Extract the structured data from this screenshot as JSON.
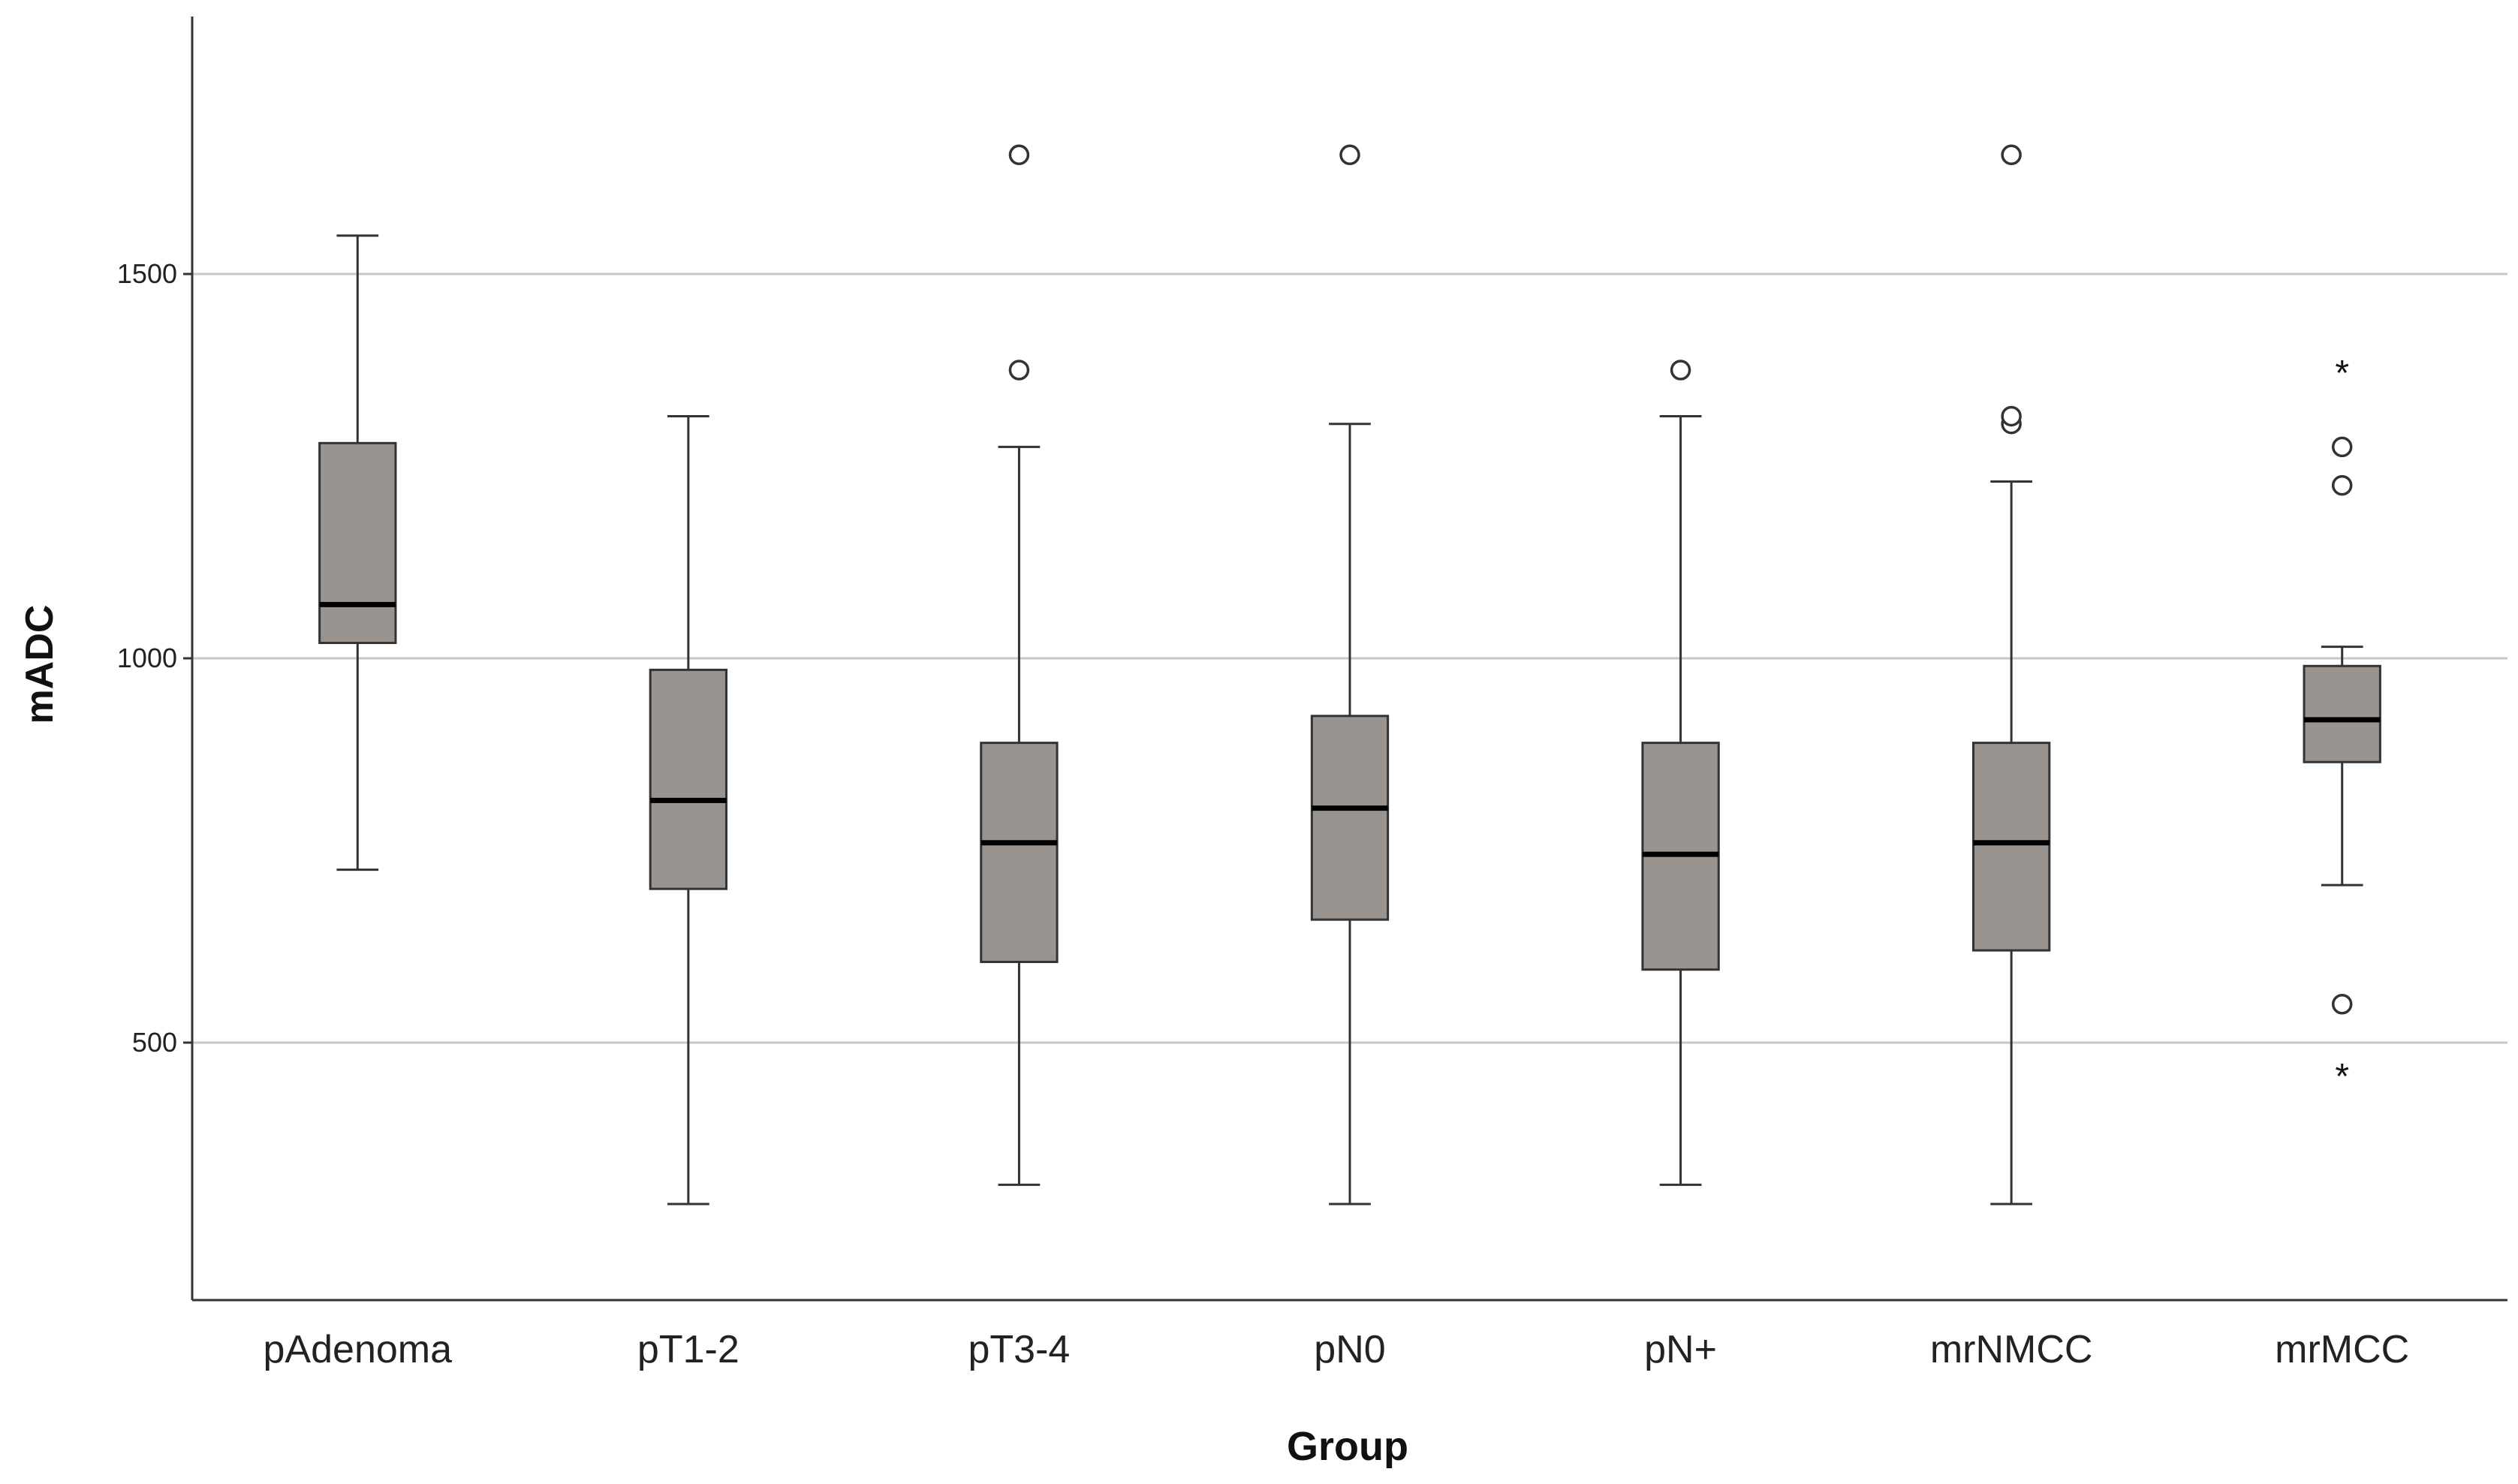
{
  "chart_data": {
    "type": "boxplot",
    "xlabel": "Group",
    "ylabel": "mADC",
    "ylim": [
      165,
      1835
    ],
    "yticks": [
      500,
      1000,
      1500
    ],
    "grid": true,
    "categories": [
      "pAdenoma",
      "pT1-2",
      "pT3-4",
      "pN0",
      "pN+",
      "mrNMCC",
      "mrMCC"
    ],
    "boxes": [
      {
        "group": "pAdenoma",
        "whisker_low": 725,
        "q1": 1020,
        "median": 1070,
        "q3": 1280,
        "whisker_high": 1550,
        "outliers": [],
        "extremes": []
      },
      {
        "group": "pT1-2",
        "whisker_low": 290,
        "q1": 700,
        "median": 815,
        "q3": 985,
        "whisker_high": 1315,
        "outliers": [],
        "extremes": []
      },
      {
        "group": "pT3-4",
        "whisker_low": 315,
        "q1": 605,
        "median": 760,
        "q3": 890,
        "whisker_high": 1275,
        "outliers": [
          1375,
          1655
        ],
        "extremes": []
      },
      {
        "group": "pN0",
        "whisker_low": 290,
        "q1": 660,
        "median": 805,
        "q3": 925,
        "whisker_high": 1305,
        "outliers": [
          1655
        ],
        "extremes": []
      },
      {
        "group": "pN+",
        "whisker_low": 315,
        "q1": 595,
        "median": 745,
        "q3": 890,
        "whisker_high": 1315,
        "outliers": [
          1375
        ],
        "extremes": []
      },
      {
        "group": "mrNMCC",
        "whisker_low": 290,
        "q1": 620,
        "median": 760,
        "q3": 890,
        "whisker_high": 1230,
        "outliers": [
          1305,
          1315,
          1655
        ],
        "extremes": []
      },
      {
        "group": "mrMCC",
        "whisker_low": 705,
        "q1": 865,
        "median": 920,
        "q3": 990,
        "whisker_high": 1015,
        "outliers": [
          550,
          1225,
          1275
        ],
        "extremes": [
          460,
          1375
        ]
      }
    ],
    "colors": {
      "box_fill": "#9a9490",
      "line": "#333333",
      "grid": "#c8c8c8"
    }
  }
}
